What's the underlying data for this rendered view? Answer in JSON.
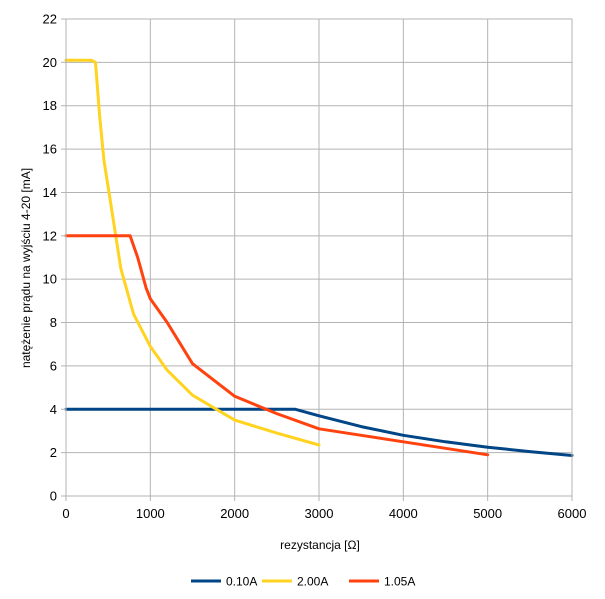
{
  "chart_data": {
    "type": "line",
    "title": "",
    "xlabel": "rezystancja [Ω]",
    "ylabel": "natężenie prądu na wyjściu 4-20 [mA]",
    "xlim": [
      0,
      6000
    ],
    "ylim": [
      0,
      22
    ],
    "xticks": [
      "0",
      "1000",
      "2000",
      "3000",
      "4000",
      "5000",
      "6000"
    ],
    "yticks": [
      "0",
      "2",
      "4",
      "6",
      "8",
      "10",
      "12",
      "14",
      "16",
      "18",
      "20",
      "22"
    ],
    "grid": true,
    "legend_position": "bottom",
    "series": [
      {
        "name": "0.10A",
        "color": "#004586",
        "points": [
          [
            0,
            4.0
          ],
          [
            500,
            4.0
          ],
          [
            1000,
            4.0
          ],
          [
            1500,
            4.0
          ],
          [
            2000,
            4.0
          ],
          [
            2500,
            4.0
          ],
          [
            2720,
            4.0
          ],
          [
            3000,
            3.7
          ],
          [
            3500,
            3.2
          ],
          [
            4000,
            2.8
          ],
          [
            4500,
            2.5
          ],
          [
            5000,
            2.25
          ],
          [
            5500,
            2.05
          ],
          [
            6000,
            1.87
          ]
        ]
      },
      {
        "name": "2.00A",
        "color": "#ffd320",
        "points": [
          [
            0,
            20.1
          ],
          [
            300,
            20.1
          ],
          [
            350,
            20.0
          ],
          [
            400,
            17.5
          ],
          [
            450,
            15.5
          ],
          [
            550,
            13.0
          ],
          [
            650,
            10.5
          ],
          [
            800,
            8.4
          ],
          [
            1000,
            6.9
          ],
          [
            1200,
            5.8
          ],
          [
            1500,
            4.65
          ],
          [
            2000,
            3.5
          ],
          [
            2500,
            2.9
          ],
          [
            3000,
            2.35
          ]
        ]
      },
      {
        "name": "1.05A",
        "color": "#ff420e",
        "points": [
          [
            0,
            12.0
          ],
          [
            500,
            12.0
          ],
          [
            760,
            12.0
          ],
          [
            850,
            11.0
          ],
          [
            950,
            9.6
          ],
          [
            1000,
            9.1
          ],
          [
            1200,
            8.0
          ],
          [
            1500,
            6.1
          ],
          [
            2000,
            4.6
          ],
          [
            2500,
            3.8
          ],
          [
            3000,
            3.1
          ],
          [
            3500,
            2.8
          ],
          [
            4000,
            2.5
          ],
          [
            4500,
            2.2
          ],
          [
            5000,
            1.9
          ]
        ]
      }
    ]
  }
}
